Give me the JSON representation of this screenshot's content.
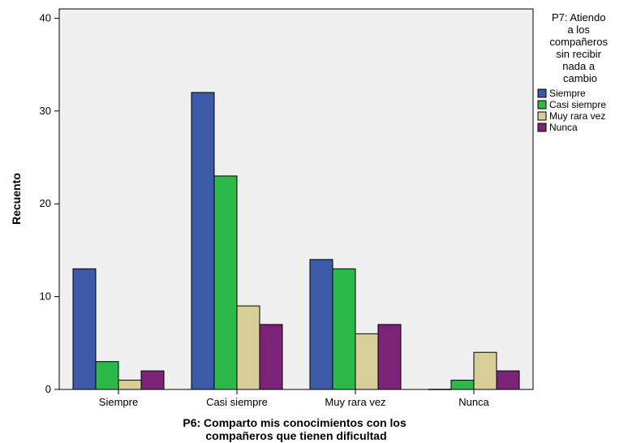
{
  "chart_data": {
    "type": "bar",
    "categories": [
      "Siempre",
      "Casi siempre",
      "Muy rara vez",
      "Nunca"
    ],
    "series": [
      {
        "name": "Siempre",
        "values": [
          13,
          32,
          14,
          0
        ],
        "color": "#3c5aa8"
      },
      {
        "name": "Casi siempre",
        "values": [
          3,
          23,
          13,
          1
        ],
        "color": "#2db84a"
      },
      {
        "name": "Muy rara vez",
        "values": [
          1,
          9,
          6,
          4
        ],
        "color": "#d7cf97"
      },
      {
        "name": "Nunca",
        "values": [
          2,
          7,
          7,
          2
        ],
        "color": "#7b2377"
      }
    ],
    "xlabel": "P6: Comparto mis conocimientos con los compañeros que tienen dificultad",
    "xlabel_lines": [
      "P6: Comparto mis conocimientos con los",
      "compañeros que tienen dificultad"
    ],
    "ylabel": "Recuento",
    "ylim": [
      0,
      41
    ],
    "yticks": [
      0,
      10,
      20,
      30,
      40
    ],
    "legend_title": "P7: Atiendo a los compañeros sin recibir nada a cambio",
    "legend_title_lines": [
      "P7: Atiendo",
      "a los",
      "compañeros",
      "sin recibir",
      "nada a",
      "cambio"
    ],
    "legend_position": "right",
    "plot_background": "#f0f0f0",
    "grid": false
  }
}
